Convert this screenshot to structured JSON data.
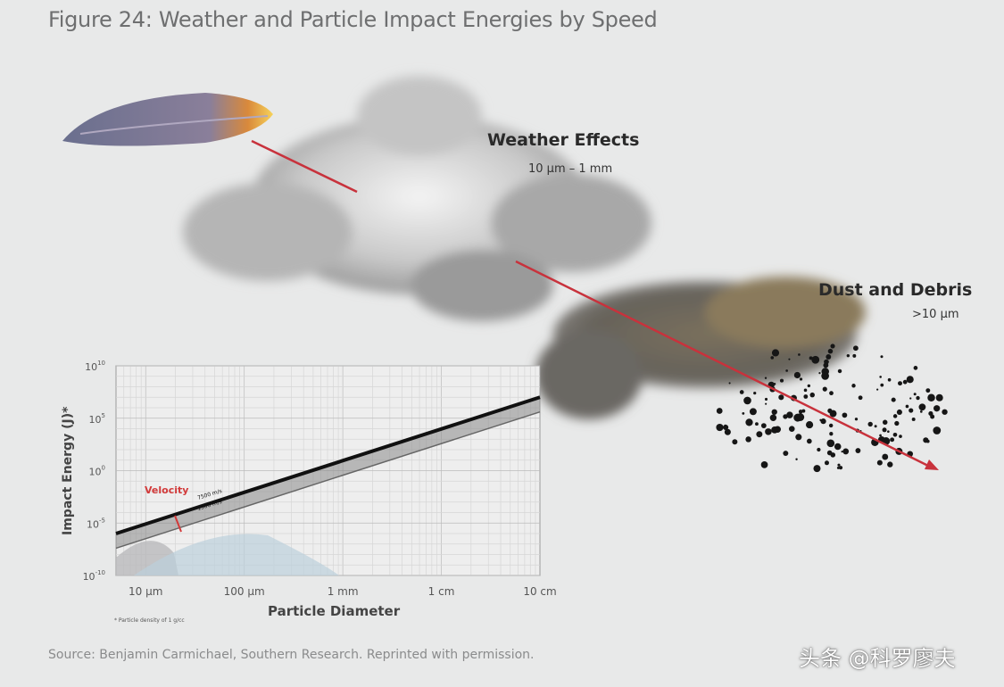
{
  "figure": {
    "title": "Figure 24: Weather and Particle Impact Energies by Speed",
    "weather_label": "Weather Effects",
    "weather_range": "10 µm – 1 mm",
    "dust_label": "Dust and Debris",
    "dust_range": ">10 µm",
    "source": "Source: Benjamin Carmichael, Southern Research. Reprinted with permission.",
    "watermark": "头条 @科罗廖夫"
  },
  "colors": {
    "background": "#e8e9e9",
    "trajectory": "#c8323c",
    "velocity_label": "#d23a3a",
    "line": "#1a1a1a"
  },
  "chart_data": {
    "type": "line",
    "xlabel": "Particle Diameter",
    "ylabel": "Impact Energy (J)*",
    "x_scale": "log",
    "y_scale": "log",
    "xlim_m": [
      5e-06,
      0.1
    ],
    "ylim": [
      1e-10,
      10000000000.0
    ],
    "x_ticks": [
      {
        "value": 1e-05,
        "label": "10 µm"
      },
      {
        "value": 0.0001,
        "label": "100 µm"
      },
      {
        "value": 0.001,
        "label": "1 mm"
      },
      {
        "value": 0.01,
        "label": "1 cm"
      },
      {
        "value": 0.1,
        "label": "10 cm"
      }
    ],
    "y_ticks": [
      {
        "exp": 10,
        "label": "10",
        "sup": "10"
      },
      {
        "exp": 5,
        "label": "10",
        "sup": "5"
      },
      {
        "exp": 0,
        "label": "10",
        "sup": "0"
      },
      {
        "exp": -5,
        "label": "10",
        "sup": "-5"
      },
      {
        "exp": -10,
        "label": "10",
        "sup": "-10"
      }
    ],
    "grid": true,
    "band_label": "Velocity",
    "series": [
      {
        "name": "7500 m/s",
        "x": [
          5e-06,
          0.1
        ],
        "y": [
          1e-06,
          10000000.0
        ]
      },
      {
        "name": "1500 m/s",
        "x": [
          5e-06,
          0.1
        ],
        "y": [
          4e-08,
          400000.0
        ]
      }
    ],
    "footnote": "* Particle density of 1 g/cc"
  }
}
